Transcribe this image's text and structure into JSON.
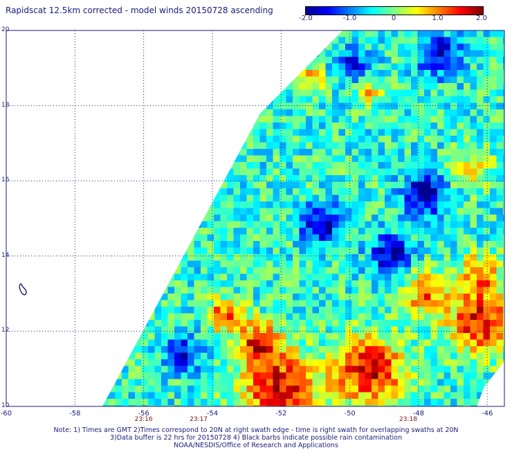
{
  "title": "Rapidscat 12.5km corrected - model winds 20150728 ascending",
  "colorbar": {
    "min": -2.0,
    "max": 2.0,
    "ticks": [
      {
        "value": -2.0,
        "label": "-2.0"
      },
      {
        "value": -1.0,
        "label": "-1.0"
      },
      {
        "value": 0,
        "label": "0"
      },
      {
        "value": 1.0,
        "label": "1.0"
      },
      {
        "value": 2.0,
        "label": "2.0"
      }
    ],
    "colors": [
      "#00008f",
      "#0000ff",
      "#0080ff",
      "#00ffff",
      "#80ff80",
      "#ffff00",
      "#ff8000",
      "#ff0000",
      "#800000"
    ]
  },
  "map": {
    "lon_range": [
      -60,
      -45.5
    ],
    "lat_range": [
      10,
      20
    ],
    "lat_ticks": [
      {
        "value": 20,
        "label": "20"
      },
      {
        "value": 18,
        "label": "18"
      },
      {
        "value": 16,
        "label": "16"
      },
      {
        "value": 14,
        "label": "14"
      },
      {
        "value": 12,
        "label": "12"
      },
      {
        "value": 10,
        "label": "10"
      }
    ],
    "lon_ticks": [
      {
        "value": -60,
        "label": "-60"
      },
      {
        "value": -58,
        "label": "-58"
      },
      {
        "value": -56,
        "label": "-56"
      },
      {
        "value": -54,
        "label": "-54"
      },
      {
        "value": -52,
        "label": "-52"
      },
      {
        "value": -50,
        "label": "-50"
      },
      {
        "value": -48,
        "label": "-48"
      },
      {
        "value": -46,
        "label": "-46"
      }
    ],
    "time_labels": [
      {
        "lon": -56,
        "label": "23:16"
      },
      {
        "lon": -54.4,
        "label": "23:17"
      },
      {
        "lon": -48.3,
        "label": "23:18"
      }
    ],
    "swath": [
      {
        "lon": -57.2,
        "lat": 10
      },
      {
        "lon": -52.6,
        "lat": 17.8
      },
      {
        "lon": -50.2,
        "lat": 20
      },
      {
        "lon": -45.5,
        "lat": 20
      },
      {
        "lon": -45.5,
        "lat": 11.2
      },
      {
        "lon": -46.1,
        "lat": 10.5
      },
      {
        "lon": -46.3,
        "lat": 10
      }
    ],
    "land_outline_color": "#1a1a7a",
    "grid_color": "#1a1a7a"
  },
  "notes": {
    "line1": "Note: 1) Times are GMT 2)Times correspond to 20N at right swath edge - time is right swath for overlapping swaths at 20N",
    "line2": "3)Data buffer is 22 hrs for 20150728 4) Black barbs indicate possible rain contamination",
    "line3": "NOAA/NESDIS/Office of Research and Applications"
  }
}
